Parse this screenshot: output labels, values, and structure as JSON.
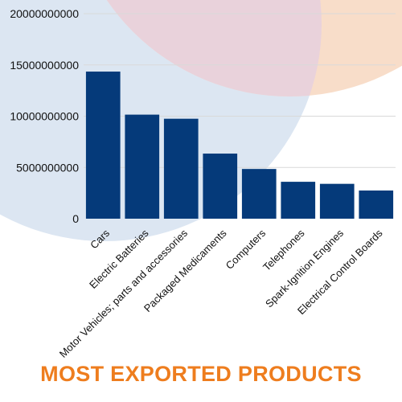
{
  "page": {
    "title": "MOST EXPORTED PRODUCTS",
    "title_color": "#EE7D1E"
  },
  "colors": {
    "bar": "#053A7A",
    "background_blue_circle": "#DCE6F2",
    "background_peach_circle": "#F8DDC9",
    "background_pink_overlap": "#E9D2DB",
    "gridline": "#D9D9D9"
  },
  "chart_data": {
    "type": "bar",
    "categories": [
      "Cars",
      "Electric Batteries",
      "Motor Vehicles; parts and accessories",
      "Packaged Medicaments",
      "Computers",
      "Telephones",
      "Spark-Ignition Engines",
      "Electrical Control Boards"
    ],
    "values": [
      14350000000,
      10150000000,
      9750000000,
      6350000000,
      4850000000,
      3600000000,
      3400000000,
      2750000000
    ],
    "yticks": [
      "0",
      "5000000000",
      "10000000000",
      "15000000000",
      "20000000000"
    ],
    "ylim": [
      0,
      20000000000
    ],
    "grid": true,
    "legend": "none",
    "title": "",
    "xlabel": "",
    "ylabel": ""
  }
}
